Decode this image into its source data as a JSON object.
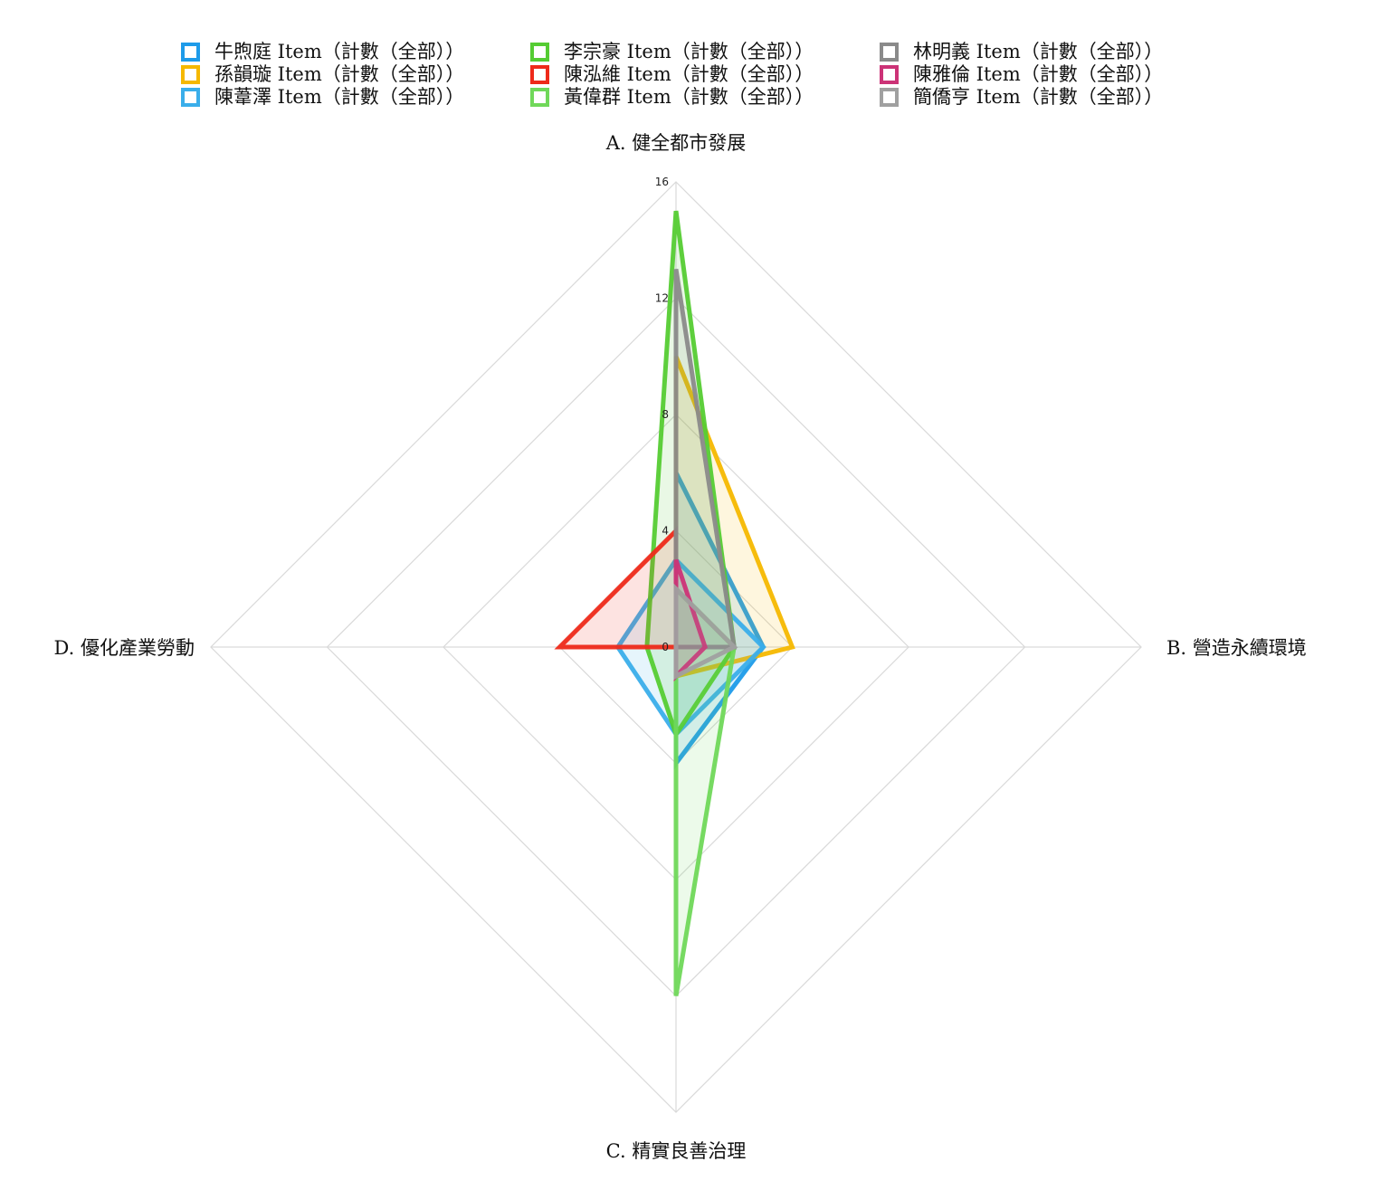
{
  "chart_data": {
    "type": "radar",
    "axes": [
      "A. 健全都市發展",
      "B. 營造永續環境",
      "C. 精實良善治理",
      "D. 優化產業勞動"
    ],
    "r_range": [
      0,
      16
    ],
    "ticks": [
      0,
      4,
      8,
      12,
      16
    ],
    "grid": true,
    "legend_position": "top",
    "series": [
      {
        "name": "牛煦庭 Item（計數（全部））",
        "color": "#1e9be9",
        "fill": "#1e9be9",
        "values": [
          6,
          3,
          4,
          0
        ]
      },
      {
        "name": "孫韻璇 Item（計數（全部））",
        "color": "#f5b800",
        "fill": "#f5b800",
        "values": [
          10,
          4,
          1,
          0
        ]
      },
      {
        "name": "陳葦澤 Item（計數（全部））",
        "color": "#3aaeea",
        "fill": "#3aaeea",
        "values": [
          3,
          3,
          3,
          2
        ]
      },
      {
        "name": "李宗豪 Item（計數（全部））",
        "color": "#55cc33",
        "fill": "#55cc33",
        "values": [
          15,
          2,
          3,
          1
        ]
      },
      {
        "name": "陳泓維 Item（計數（全部））",
        "color": "#ee2a1a",
        "fill": "#ee2a1a",
        "values": [
          4,
          0,
          0,
          4
        ]
      },
      {
        "name": "黃偉群 Item（計數（全部））",
        "color": "#70d85a",
        "fill": "#70d85a",
        "values": [
          2,
          2,
          12,
          0
        ]
      },
      {
        "name": "林明義 Item（計數（全部））",
        "color": "#8a8a8a",
        "fill": "#8a8a8a",
        "values": [
          13,
          2,
          0,
          0
        ]
      },
      {
        "name": "陳雅倫 Item（計數（全部））",
        "color": "#cc3377",
        "fill": "#cc3377",
        "values": [
          3,
          1,
          1,
          0
        ]
      },
      {
        "name": "簡僑亨 Item（計數（全部））",
        "color": "#a0a0a0",
        "fill": "#a0a0a0",
        "values": [
          2,
          2,
          1,
          0
        ]
      }
    ]
  }
}
